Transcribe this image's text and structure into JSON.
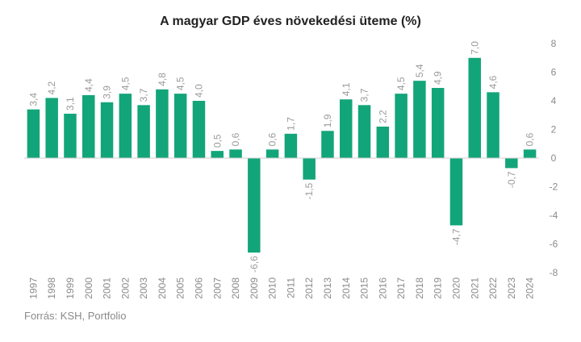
{
  "chart_data": {
    "type": "bar",
    "title": "A magyar GDP éves növekedési üteme (%)",
    "xlabel": "",
    "ylabel": "",
    "ylim": [
      -8,
      8
    ],
    "yticks": [
      8,
      6,
      4,
      2,
      0,
      -2,
      -4,
      -6,
      -8
    ],
    "grid": false,
    "bar_color": "#13a57a",
    "categories": [
      "1997",
      "1998",
      "1999",
      "2000",
      "2001",
      "2002",
      "2003",
      "2004",
      "2005",
      "2006",
      "2007",
      "2008",
      "2009",
      "2010",
      "2011",
      "2012",
      "2013",
      "2014",
      "2015",
      "2016",
      "2017",
      "2018",
      "2019",
      "2020",
      "2021",
      "2022",
      "2023",
      "2024"
    ],
    "values": [
      3.4,
      4.2,
      3.1,
      4.4,
      3.9,
      4.5,
      3.7,
      4.8,
      4.5,
      4.0,
      0.5,
      0.6,
      -6.6,
      0.6,
      1.7,
      -1.5,
      1.9,
      4.1,
      3.7,
      2.2,
      4.5,
      5.4,
      4.9,
      -4.7,
      7.0,
      4.6,
      -0.7,
      0.6
    ],
    "data_labels": [
      "3,4",
      "4,2",
      "3,1",
      "4,4",
      "3,9",
      "4,5",
      "3,7",
      "4,8",
      "4,5",
      "4,0",
      "0,5",
      "0,6",
      "-6,6",
      "0,6",
      "1,7",
      "-1,5",
      "1,9",
      "4,1",
      "3,7",
      "2,2",
      "4,5",
      "5,4",
      "4,9",
      "-4,7",
      "7,0",
      "4,6",
      "-0,7",
      "0,6"
    ]
  },
  "footer": {
    "source": "Forrás: KSH, Portfolio"
  }
}
